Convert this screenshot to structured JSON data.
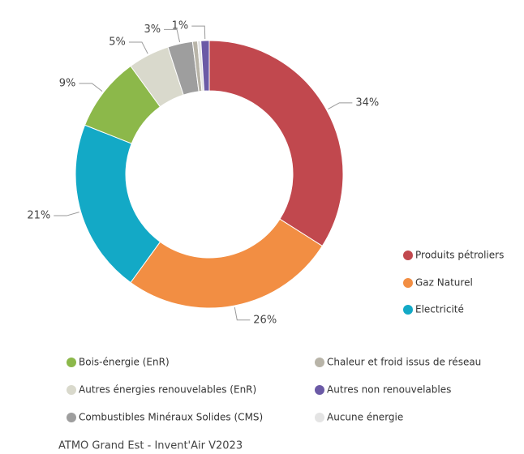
{
  "chart_data": {
    "type": "pie",
    "donut": true,
    "categories": [
      "Produits pétroliers",
      "Gaz Naturel",
      "Electricité",
      "Bois-énergie (EnR)",
      "Autres énergies renouvelables (EnR)",
      "Combustibles Minéraux Solides (CMS)",
      "Chaleur et froid issus de réseau",
      "Aucune énergie",
      "Autres non renouvelables"
    ],
    "values": [
      34,
      26,
      21,
      9,
      5,
      3,
      0.6,
      0.4,
      1
    ],
    "value_labels": [
      "34%",
      "26%",
      "21%",
      "9%",
      "5%",
      "3%",
      null,
      null,
      "1%"
    ],
    "colors": [
      "#c1484e",
      "#f28e43",
      "#13a9c6",
      "#8cb84a",
      "#d9d9cc",
      "#9e9e9e",
      "#b8b4a8",
      "#e4e4e4",
      "#6b5aa6"
    ],
    "source": "ATMO Grand Est - Invent'Air V2023"
  }
}
